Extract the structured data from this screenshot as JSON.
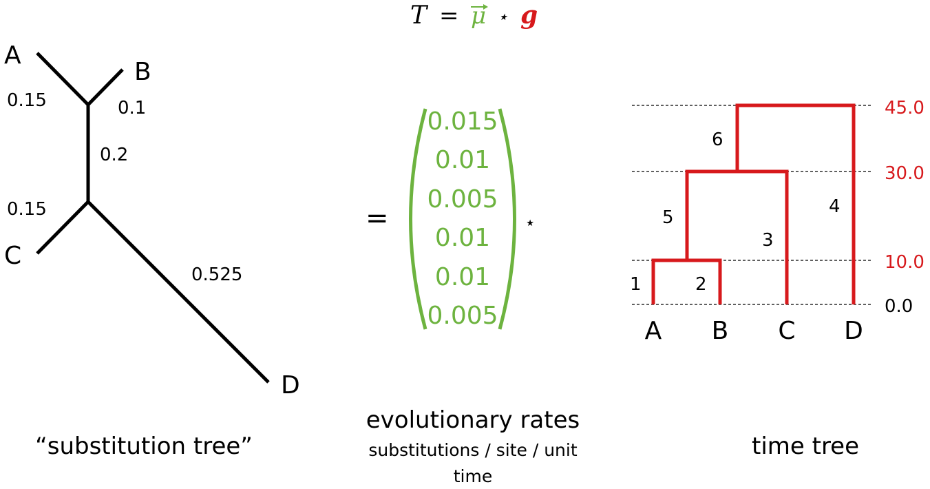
{
  "colors": {
    "green": "#6db33f",
    "red": "#d7191c",
    "black": "#000000"
  },
  "equation": {
    "T": "T",
    "eq": "=",
    "mu": "μ",
    "star": "⋆",
    "g": "g"
  },
  "substitution_tree": {
    "leaves": [
      "A",
      "B",
      "C",
      "D"
    ],
    "branch_labels": [
      "0.15",
      "0.1",
      "0.2",
      "0.15",
      "0.525"
    ],
    "caption": "“substitution tree”"
  },
  "rates": {
    "eq_sign": "=",
    "star": "⋆",
    "values": [
      "0.015",
      "0.01",
      "0.005",
      "0.01",
      "0.01",
      "0.005"
    ],
    "caption_line1": "evolutionary rates",
    "caption_line2": "substitutions / site / unit",
    "caption_line3": "time"
  },
  "time_tree": {
    "leaves": [
      "A",
      "B",
      "C",
      "D"
    ],
    "branch_numbers": [
      "1",
      "2",
      "3",
      "4",
      "5",
      "6"
    ],
    "time_labels": [
      "45.0",
      "30.0",
      "10.0",
      "0.0"
    ],
    "caption": "time tree"
  }
}
